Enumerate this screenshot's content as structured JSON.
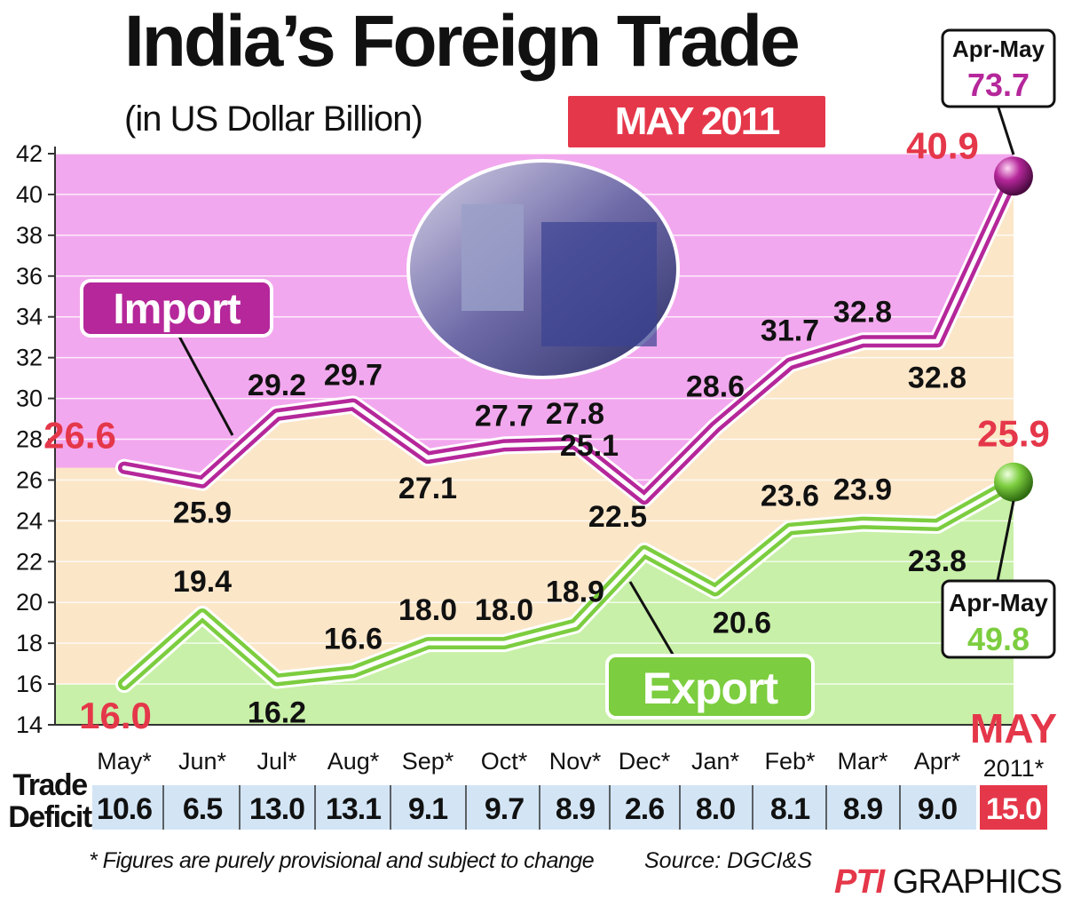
{
  "title": "India’s Foreign Trade",
  "subtitle": "(in US Dollar Billion)",
  "month_badge": "MAY 2011",
  "footnote": "* Figures are purely provisional and subject to change",
  "source": "Source: DGCI&S",
  "credit_brand": "PTI",
  "credit_text": "GRAPHICS",
  "deficit_label": "Trade Deficit",
  "colors": {
    "import": "#b5279a",
    "export": "#7ccd3f",
    "accent_red": "#e5374a",
    "import_bg": "#f2a8ee",
    "export_bg": "#c8f0a8",
    "neutral_bg": "#fbe6c8",
    "deficit_row": "#d3e5f5"
  },
  "chart_data": {
    "type": "line",
    "categories": [
      "May*",
      "Jun*",
      "Jul*",
      "Aug*",
      "Sep*",
      "Oct*",
      "Nov*",
      "Dec*",
      "Jan*",
      "Feb*",
      "Mar*",
      "Apr*",
      "MAY"
    ],
    "ylim": [
      14,
      42
    ],
    "yticks": [
      14,
      16,
      18,
      20,
      22,
      24,
      26,
      28,
      30,
      32,
      34,
      36,
      38,
      40,
      42
    ],
    "series": [
      {
        "name": "Import",
        "values": [
          26.6,
          25.9,
          29.2,
          29.7,
          27.1,
          27.7,
          27.8,
          25.1,
          28.6,
          31.7,
          32.8,
          32.8,
          40.9
        ],
        "labels": [
          "26.6",
          "25.9",
          "29.2",
          "29.7",
          "27.1",
          "27.7",
          "27.8",
          "25.1",
          "28.6",
          "31.7",
          "32.8",
          "32.8",
          "40.9"
        ]
      },
      {
        "name": "Export",
        "values": [
          16.0,
          19.4,
          16.2,
          16.6,
          18.0,
          18.0,
          18.9,
          22.5,
          20.6,
          23.6,
          23.9,
          23.8,
          25.9
        ],
        "labels": [
          "16.0",
          "19.4",
          "16.2",
          "16.6",
          "18.0",
          "18.0",
          "18.9",
          "22.5",
          "20.6",
          "23.6",
          "23.9",
          "23.8",
          "25.9"
        ]
      }
    ],
    "callouts": {
      "import": {
        "label": "Apr-May",
        "value": "73.7"
      },
      "export": {
        "label": "Apr-May",
        "value": "49.8"
      }
    },
    "current_month": {
      "label": "MAY",
      "year": "2011*"
    },
    "trade_deficit": [
      "10.6",
      "6.5",
      "13.0",
      "13.1",
      "9.1",
      "9.7",
      "8.9",
      "2.6",
      "8.0",
      "8.1",
      "8.9",
      "9.0",
      "15.0"
    ]
  }
}
